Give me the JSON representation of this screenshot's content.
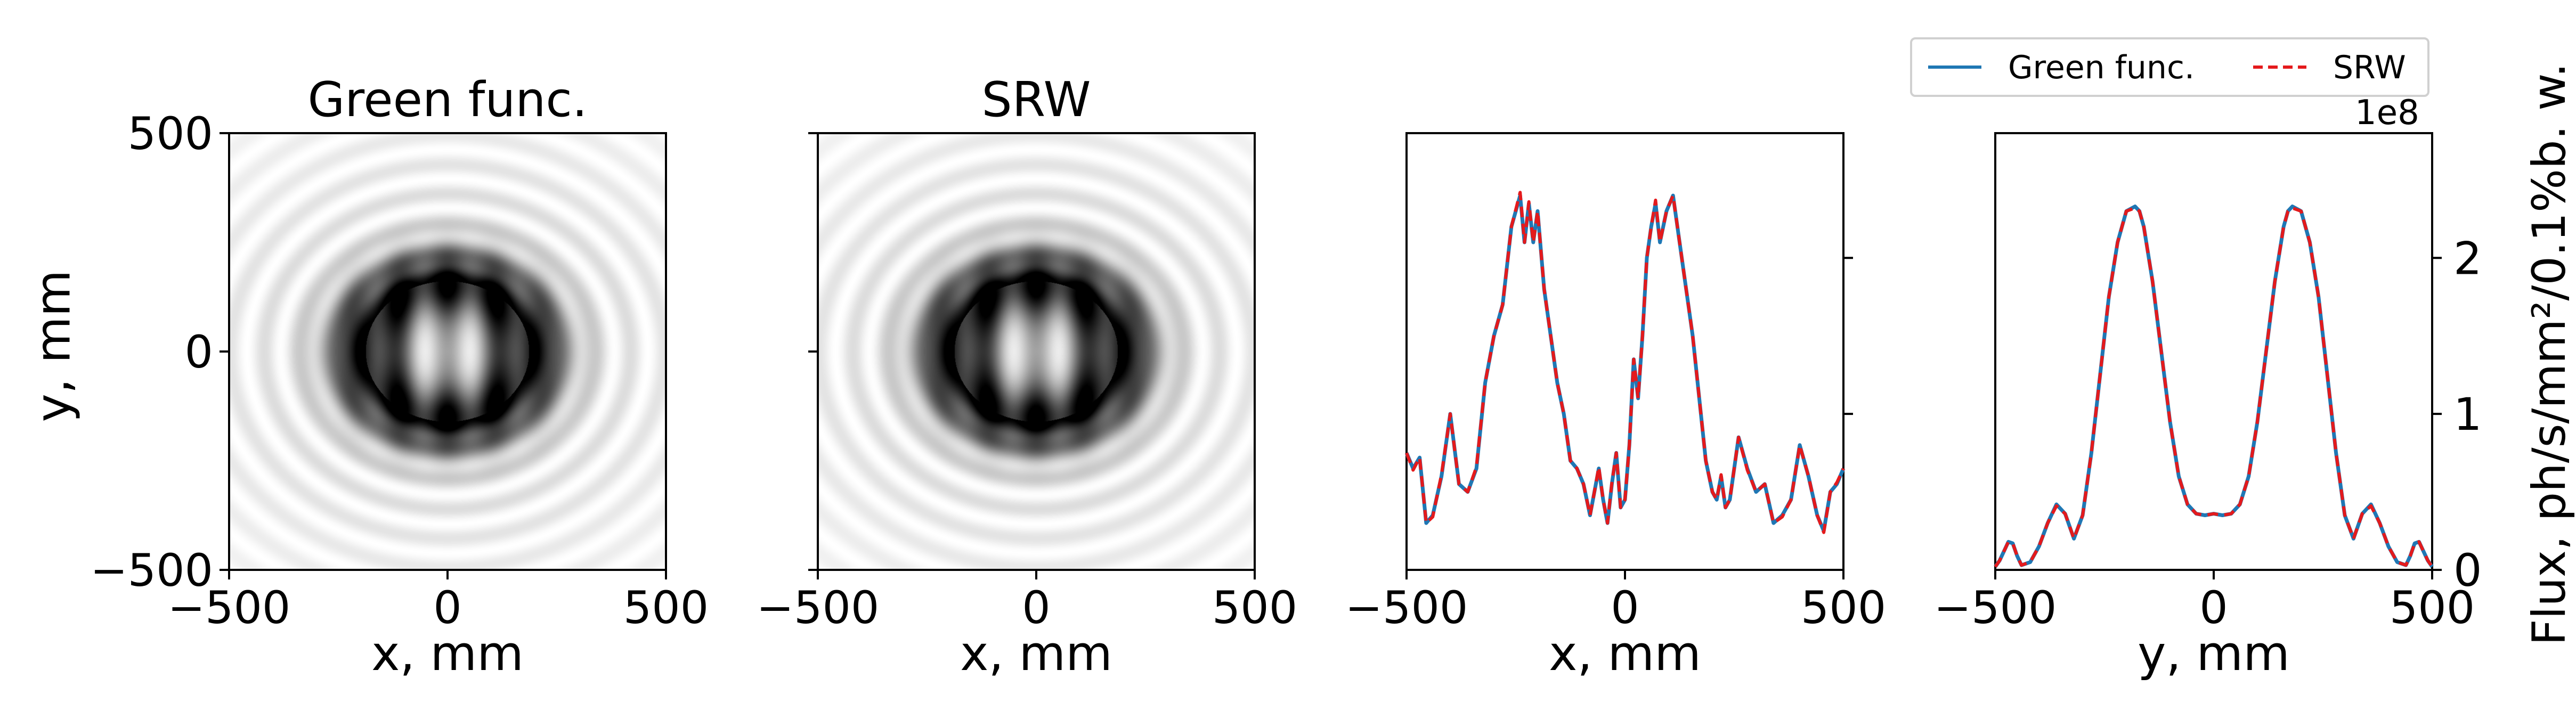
{
  "chart_data": [
    {
      "type": "heatmap",
      "title": "Green func.",
      "xlabel": "x, mm",
      "ylabel": "y, mm",
      "xlim": [
        -500,
        500
      ],
      "ylim": [
        -500,
        500
      ],
      "xticks": [
        "−500",
        "0",
        "500"
      ],
      "yticks": [
        "500",
        "0",
        "−500"
      ],
      "colormap": "greys",
      "description_values": {
        "ring_radius_mm": 180,
        "ring_width_mm": 85,
        "fringe_period_mm": 110
      }
    },
    {
      "type": "heatmap",
      "title": "SRW",
      "xlabel": "x, mm",
      "ylabel": "",
      "xlim": [
        -500,
        500
      ],
      "ylim": [
        -500,
        500
      ],
      "xticks": [
        "−500",
        "0",
        "500"
      ],
      "yticks": [],
      "colormap": "greys",
      "description_values": {
        "ring_radius_mm": 180,
        "ring_width_mm": 85,
        "fringe_period_mm": 110
      }
    },
    {
      "type": "line",
      "title": "",
      "xlabel": "x, mm",
      "ylabel": "",
      "xlim": [
        -500,
        500
      ],
      "ylim": [
        0,
        2.8
      ],
      "xticks": [
        "−500",
        "0",
        "500"
      ],
      "series": [
        {
          "name": "Green func.",
          "color": "#1f77b4",
          "style": "solid",
          "x": [
            -500,
            -485,
            -470,
            -455,
            -440,
            -420,
            -400,
            -380,
            -360,
            -340,
            -320,
            -300,
            -280,
            -260,
            -240,
            -230,
            -220,
            -210,
            -200,
            -185,
            -170,
            -155,
            -140,
            -125,
            -110,
            -95,
            -80,
            -70,
            -60,
            -50,
            -40,
            -30,
            -20,
            -10,
            0,
            10,
            20,
            30,
            40,
            50,
            60,
            70,
            80,
            95,
            110,
            125,
            140,
            155,
            170,
            185,
            200,
            210,
            220,
            230,
            240,
            260,
            280,
            300,
            320,
            340,
            360,
            380,
            400,
            420,
            440,
            455,
            470,
            485,
            500
          ],
          "y": [
            0.75,
            0.65,
            0.72,
            0.3,
            0.35,
            0.6,
            1.0,
            0.55,
            0.5,
            0.65,
            1.2,
            1.5,
            1.7,
            2.2,
            2.4,
            2.1,
            2.35,
            2.1,
            2.3,
            1.8,
            1.5,
            1.2,
            1.0,
            0.7,
            0.65,
            0.55,
            0.35,
            0.5,
            0.65,
            0.45,
            0.3,
            0.55,
            0.75,
            0.4,
            0.45,
            0.8,
            1.35,
            1.1,
            1.5,
            2.0,
            2.2,
            2.35,
            2.1,
            2.3,
            2.4,
            2.1,
            1.8,
            1.5,
            1.1,
            0.7,
            0.5,
            0.45,
            0.6,
            0.4,
            0.45,
            0.85,
            0.65,
            0.5,
            0.55,
            0.3,
            0.35,
            0.45,
            0.8,
            0.6,
            0.35,
            0.25,
            0.5,
            0.55,
            0.65
          ]
        },
        {
          "name": "SRW",
          "color": "#e41a1c",
          "style": "dashed",
          "x": [
            -500,
            -485,
            -470,
            -455,
            -440,
            -420,
            -400,
            -380,
            -360,
            -340,
            -320,
            -300,
            -280,
            -260,
            -240,
            -230,
            -220,
            -210,
            -200,
            -185,
            -170,
            -155,
            -140,
            -125,
            -110,
            -95,
            -80,
            -70,
            -60,
            -50,
            -40,
            -30,
            -20,
            -10,
            0,
            10,
            20,
            30,
            40,
            50,
            60,
            70,
            80,
            95,
            110,
            125,
            140,
            155,
            170,
            185,
            200,
            210,
            220,
            230,
            240,
            260,
            280,
            300,
            320,
            340,
            360,
            380,
            400,
            420,
            440,
            455,
            470,
            485,
            500
          ],
          "y": [
            0.75,
            0.64,
            0.72,
            0.3,
            0.34,
            0.61,
            1.0,
            0.55,
            0.5,
            0.66,
            1.2,
            1.5,
            1.7,
            2.2,
            2.42,
            2.1,
            2.36,
            2.1,
            2.3,
            1.8,
            1.5,
            1.2,
            1.0,
            0.7,
            0.65,
            0.55,
            0.35,
            0.5,
            0.66,
            0.45,
            0.3,
            0.56,
            0.75,
            0.4,
            0.45,
            0.8,
            1.35,
            1.1,
            1.5,
            2.0,
            2.2,
            2.37,
            2.1,
            2.3,
            2.4,
            2.1,
            1.8,
            1.5,
            1.1,
            0.7,
            0.5,
            0.45,
            0.61,
            0.4,
            0.45,
            0.85,
            0.64,
            0.5,
            0.55,
            0.3,
            0.34,
            0.45,
            0.8,
            0.6,
            0.35,
            0.24,
            0.5,
            0.56,
            0.65
          ]
        }
      ]
    },
    {
      "type": "line",
      "title": "",
      "xlabel": "y, mm",
      "ylabel": "Flux, ph/s/mm²/0.1%b. w.",
      "xlim": [
        -500,
        500
      ],
      "ylim": [
        0,
        2.8
      ],
      "offset_text": "1e8",
      "xticks": [
        "−500",
        "0",
        "500"
      ],
      "yticks": [
        {
          "value": 0,
          "label": "0"
        },
        {
          "value": 1,
          "label": "1"
        },
        {
          "value": 2,
          "label": "2"
        }
      ],
      "series": [
        {
          "name": "Green func.",
          "color": "#1f77b4",
          "style": "solid",
          "x": [
            -500,
            -490,
            -480,
            -470,
            -460,
            -450,
            -440,
            -420,
            -400,
            -380,
            -360,
            -340,
            -320,
            -300,
            -280,
            -260,
            -240,
            -220,
            -200,
            -180,
            -170,
            -160,
            -140,
            -120,
            -100,
            -80,
            -60,
            -40,
            -20,
            0,
            20,
            40,
            60,
            80,
            100,
            120,
            140,
            160,
            170,
            180,
            200,
            220,
            240,
            260,
            280,
            300,
            320,
            340,
            360,
            380,
            400,
            420,
            440,
            450,
            460,
            470,
            480,
            490,
            500
          ],
          "y": [
            0.02,
            0.06,
            0.12,
            0.18,
            0.17,
            0.09,
            0.03,
            0.05,
            0.15,
            0.3,
            0.42,
            0.36,
            0.2,
            0.35,
            0.75,
            1.25,
            1.75,
            2.1,
            2.3,
            2.33,
            2.3,
            2.2,
            1.85,
            1.4,
            0.95,
            0.6,
            0.42,
            0.36,
            0.35,
            0.36,
            0.35,
            0.36,
            0.42,
            0.6,
            0.95,
            1.4,
            1.85,
            2.2,
            2.3,
            2.33,
            2.3,
            2.1,
            1.75,
            1.25,
            0.75,
            0.35,
            0.2,
            0.36,
            0.42,
            0.3,
            0.15,
            0.05,
            0.03,
            0.09,
            0.17,
            0.18,
            0.12,
            0.06,
            0.02
          ]
        },
        {
          "name": "SRW",
          "color": "#e41a1c",
          "style": "dashed",
          "x": [
            -500,
            -490,
            -480,
            -470,
            -460,
            -450,
            -440,
            -420,
            -400,
            -380,
            -360,
            -340,
            -320,
            -300,
            -280,
            -260,
            -240,
            -220,
            -200,
            -180,
            -170,
            -160,
            -140,
            -120,
            -100,
            -80,
            -60,
            -40,
            -20,
            0,
            20,
            40,
            60,
            80,
            100,
            120,
            140,
            160,
            170,
            180,
            200,
            220,
            240,
            260,
            280,
            300,
            320,
            340,
            360,
            380,
            400,
            420,
            440,
            450,
            460,
            470,
            480,
            490,
            500
          ],
          "y": [
            0.02,
            0.06,
            0.12,
            0.18,
            0.17,
            0.09,
            0.03,
            0.05,
            0.15,
            0.3,
            0.41,
            0.36,
            0.2,
            0.35,
            0.75,
            1.25,
            1.75,
            2.1,
            2.3,
            2.32,
            2.3,
            2.2,
            1.85,
            1.4,
            0.95,
            0.6,
            0.42,
            0.36,
            0.35,
            0.36,
            0.35,
            0.36,
            0.42,
            0.6,
            0.95,
            1.4,
            1.85,
            2.2,
            2.3,
            2.32,
            2.3,
            2.1,
            1.75,
            1.25,
            0.75,
            0.35,
            0.2,
            0.36,
            0.41,
            0.3,
            0.15,
            0.05,
            0.03,
            0.09,
            0.17,
            0.18,
            0.12,
            0.06,
            0.02
          ]
        }
      ]
    }
  ],
  "legend": {
    "placement": "top-right",
    "entries": [
      {
        "label": "Green func.",
        "color": "#1f77b4",
        "style": "solid"
      },
      {
        "label": "SRW",
        "color": "#e41a1c",
        "style": "dashed"
      }
    ]
  }
}
